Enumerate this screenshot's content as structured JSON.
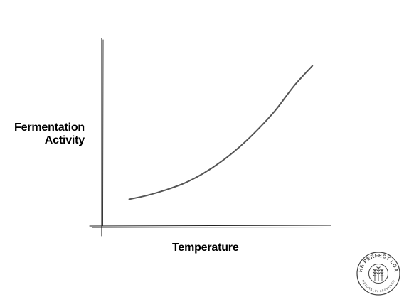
{
  "chart_data": {
    "type": "line",
    "xlabel": "Temperature",
    "ylabel_lines": [
      "Fermentation",
      "Activity"
    ],
    "series": [
      {
        "x": [
          0.0,
          0.1,
          0.2,
          0.3,
          0.4,
          0.5,
          0.6,
          0.7,
          0.8,
          0.9,
          1.0
        ],
        "values": [
          0.0,
          0.03,
          0.07,
          0.12,
          0.19,
          0.28,
          0.39,
          0.52,
          0.67,
          0.85,
          1.0
        ]
      }
    ],
    "xlim": [
      -0.15,
      1.1
    ],
    "ylim": [
      -0.2,
      1.2
    ],
    "grid": false,
    "axis_ticks": false
  },
  "logo": {
    "top_text": "THE PERFECT LOAF",
    "bottom_text": "NATURALLY LEAVENED"
  },
  "colors": {
    "axis": "#222222",
    "curve": "#555555",
    "text": "#000000",
    "logo": "#444444"
  }
}
